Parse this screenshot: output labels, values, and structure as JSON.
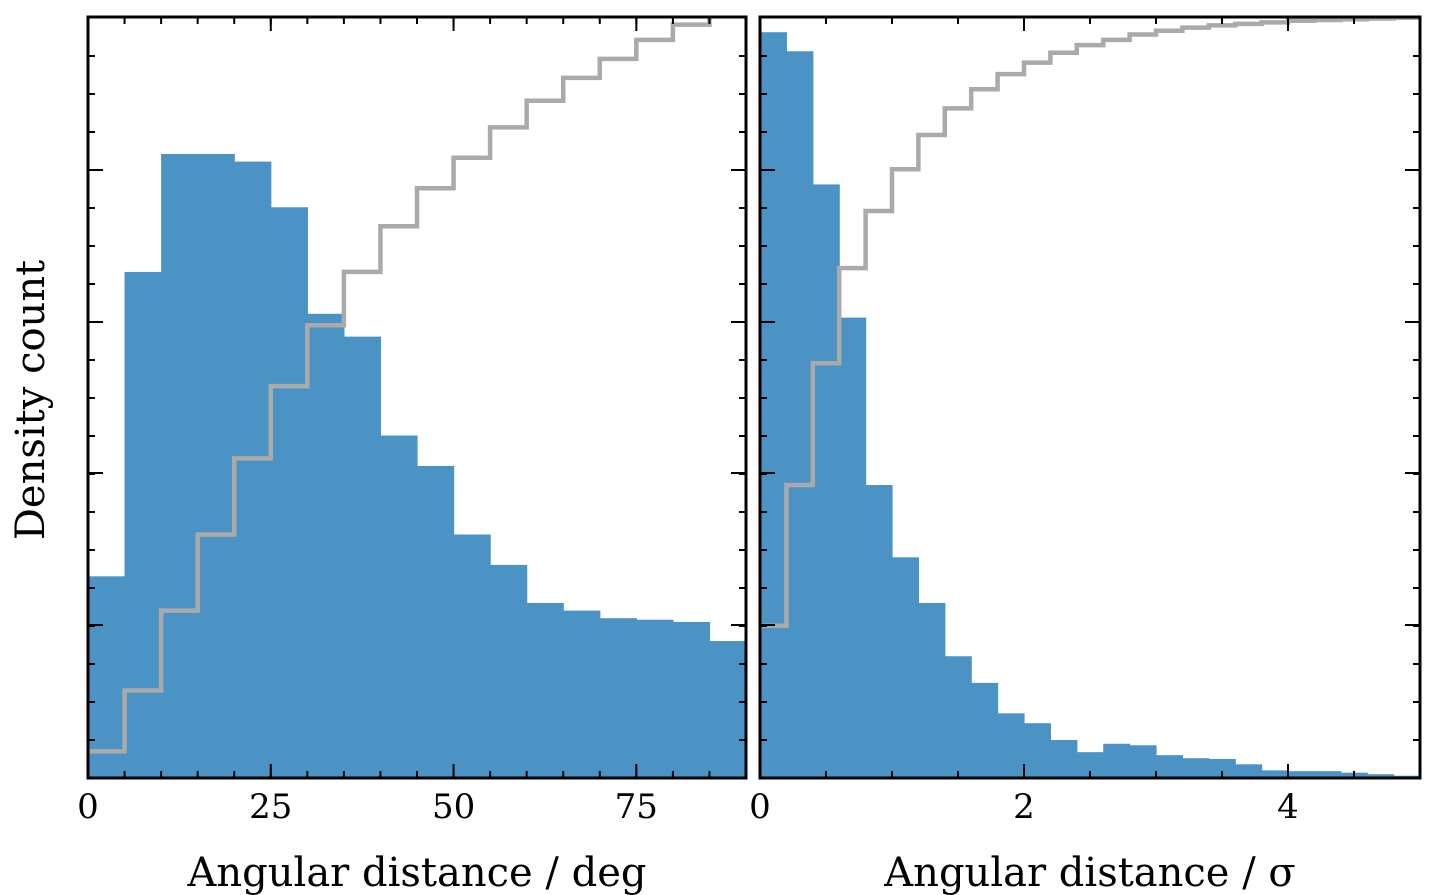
{
  "chart_data": [
    {
      "type": "bar",
      "subtype": "histogram-with-cumulative-step",
      "xlabel": "Angular distance / deg",
      "ylabel": "Density count",
      "xlim": [
        0,
        90
      ],
      "ylim": [
        0,
        1
      ],
      "xticks": [
        0,
        25,
        50,
        75
      ],
      "y_tick_labels_shown": false,
      "bin_edges": [
        0,
        5,
        10,
        15,
        20,
        25,
        30,
        35,
        40,
        45,
        50,
        55,
        60,
        65,
        70,
        75,
        80,
        85,
        90
      ],
      "series": [
        {
          "type": "histogram",
          "color": "#4c93c5",
          "values": [
            0.265,
            0.665,
            0.82,
            0.82,
            0.81,
            0.75,
            0.61,
            0.58,
            0.45,
            0.41,
            0.32,
            0.28,
            0.23,
            0.22,
            0.21,
            0.208,
            0.205,
            0.18
          ]
        },
        {
          "type": "cumulative-step",
          "color": "#aaaaaa",
          "values": [
            0.035,
            0.115,
            0.22,
            0.32,
            0.42,
            0.515,
            0.595,
            0.665,
            0.725,
            0.775,
            0.815,
            0.855,
            0.89,
            0.92,
            0.945,
            0.97,
            0.99,
            1.02
          ]
        }
      ]
    },
    {
      "type": "bar",
      "subtype": "histogram-with-cumulative-step",
      "xlabel": "Angular distance / σ",
      "xlim": [
        0,
        5
      ],
      "ylim": [
        0,
        1
      ],
      "xticks": [
        0,
        2,
        4
      ],
      "y_tick_labels_shown": false,
      "bin_width": 0.2,
      "series": [
        {
          "type": "histogram",
          "color": "#4c93c5",
          "values": [
            0.98,
            0.955,
            0.78,
            0.605,
            0.385,
            0.29,
            0.23,
            0.16,
            0.125,
            0.085,
            0.072,
            0.05,
            0.034,
            0.045,
            0.043,
            0.03,
            0.026,
            0.025,
            0.018,
            0.01,
            0.009,
            0.009,
            0.007,
            0.005,
            0.003
          ]
        },
        {
          "type": "cumulative-step",
          "color": "#aaaaaa",
          "values": [
            0.2,
            0.385,
            0.545,
            0.67,
            0.745,
            0.8,
            0.845,
            0.88,
            0.905,
            0.925,
            0.94,
            0.953,
            0.963,
            0.97,
            0.977,
            0.982,
            0.986,
            0.989,
            0.991,
            0.993,
            0.995,
            0.996,
            0.997,
            0.998,
            0.999
          ]
        }
      ]
    }
  ]
}
